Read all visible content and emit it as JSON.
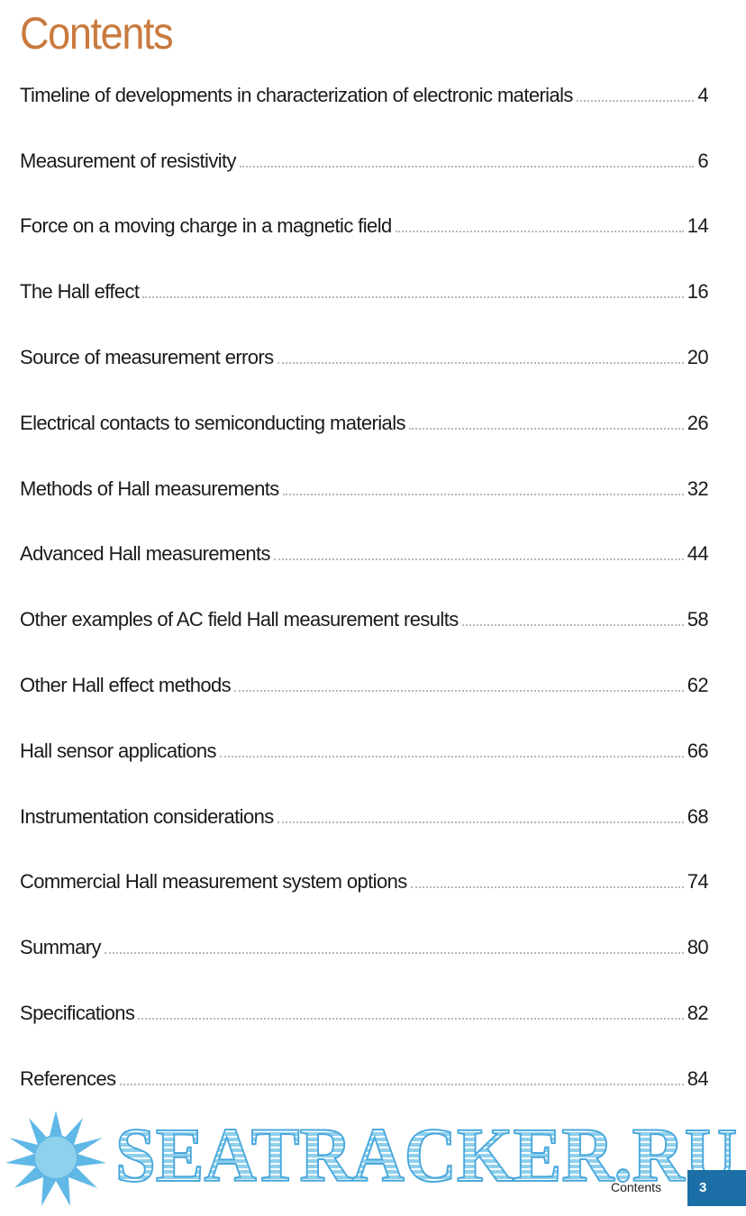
{
  "header": {
    "title": "Contents"
  },
  "entries": [
    {
      "title": "Timeline of developments in characterization of electronic materials",
      "page": "4"
    },
    {
      "title": "Measurement of resistivity",
      "page": "6"
    },
    {
      "title": "Force on a moving charge in a magnetic field",
      "page": "14"
    },
    {
      "title": "The Hall effect",
      "page": "16"
    },
    {
      "title": "Source of measurement errors",
      "page": "20"
    },
    {
      "title": "Electrical contacts to semiconducting materials",
      "page": "26"
    },
    {
      "title": "Methods of Hall measurements",
      "page": "32"
    },
    {
      "title": "Advanced Hall measurements",
      "page": "44"
    },
    {
      "title": "Other examples of AC field Hall measurement results",
      "page": "58"
    },
    {
      "title": "Other Hall effect methods",
      "page": "62"
    },
    {
      "title": "Hall sensor applications",
      "page": "66"
    },
    {
      "title": "Instrumentation considerations",
      "page": "68"
    },
    {
      "title": "Commercial Hall measurement system options",
      "page": "74"
    },
    {
      "title": "Summary",
      "page": "80"
    },
    {
      "title": "Specifications",
      "page": "82"
    },
    {
      "title": "References",
      "page": "84"
    }
  ],
  "watermark": {
    "text": "SEATRACKER.RU"
  },
  "footer": {
    "section": "Contents",
    "page_number": "3"
  }
}
